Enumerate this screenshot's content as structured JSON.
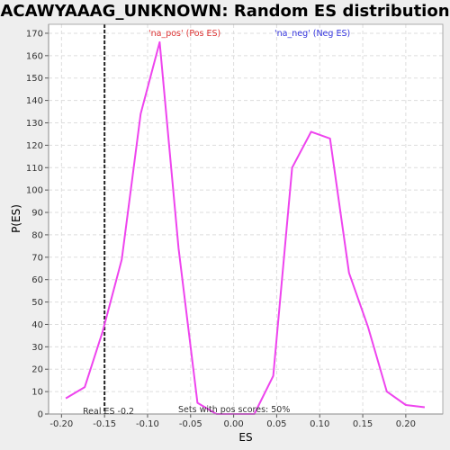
{
  "chart_data": {
    "type": "line",
    "title": "ACAWYAAAG_UNKNOWN: Random ES distribution",
    "xlabel": "ES",
    "ylabel": "P(ES)",
    "xlim": [
      -0.215,
      0.243
    ],
    "ylim": [
      0,
      174
    ],
    "x_ticks": [
      -0.2,
      -0.15,
      -0.1,
      -0.05,
      0.0,
      0.05,
      0.1,
      0.15,
      0.2
    ],
    "x_tick_labels": [
      "-0.20",
      "-0.15",
      "-0.10",
      "-0.05",
      "0.00",
      "0.05",
      "0.10",
      "0.15",
      "0.20"
    ],
    "y_ticks": [
      0,
      10,
      20,
      30,
      40,
      50,
      60,
      70,
      80,
      90,
      100,
      110,
      120,
      130,
      140,
      150,
      160,
      170
    ],
    "grid": true,
    "series": [
      {
        "name": "",
        "color": "#ee44ee",
        "x": [
          -0.195,
          -0.173,
          -0.152,
          -0.13,
          -0.108,
          -0.086,
          -0.064,
          -0.042,
          -0.02,
          0.002,
          0.024,
          0.046,
          0.068,
          0.09,
          0.112,
          0.134,
          0.156,
          0.178,
          0.2,
          0.222
        ],
        "y": [
          7,
          12,
          37,
          69,
          134,
          166,
          74,
          5,
          0,
          0,
          0,
          17,
          110,
          126,
          123,
          63,
          39,
          10,
          4,
          3
        ]
      }
    ],
    "real_es": -0.15,
    "annotations": {
      "pos_label": "'na_pos' (Pos ES)",
      "neg_label": "'na_neg' (Neg ES)",
      "real_es_label": "Real ES -0.2",
      "sets_label": "Sets with pos scores: 50%"
    },
    "colors": {
      "pos": "#dd3333",
      "neg": "#3333dd",
      "line": "#ee44ee",
      "grid": "#dddddd"
    }
  }
}
